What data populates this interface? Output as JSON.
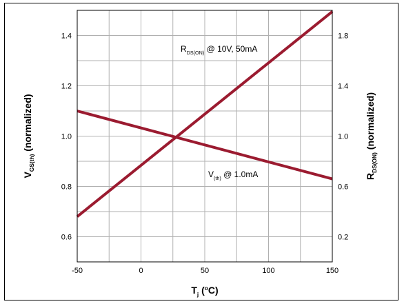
{
  "chart_data": {
    "type": "line",
    "x_axis": {
      "label_main": "T",
      "label_sub": "j",
      "label_rest": " (",
      "label_sup": "o",
      "label_end": "C)",
      "range": [
        -50,
        150
      ],
      "ticks": [
        -50,
        0,
        50,
        100,
        150
      ],
      "tick_labels": [
        "-50",
        "0",
        "50",
        "100",
        "150"
      ]
    },
    "y_left": {
      "label_main": "V",
      "label_sub": "GS(th)",
      "label_rest": " (normalized)",
      "range": [
        0.5,
        1.5
      ],
      "ticks": [
        0.6,
        0.8,
        1.0,
        1.2,
        1.4
      ],
      "tick_labels": [
        "0.6",
        "0.8",
        "1.0",
        "1.2",
        "1.4"
      ]
    },
    "y_right": {
      "label_main": "R",
      "label_sub": "DS(ON)",
      "label_rest": " (normalized)",
      "range": [
        0.0,
        2.0
      ],
      "ticks": [
        0.2,
        0.6,
        1.0,
        1.4,
        1.8
      ],
      "tick_labels": [
        "0.2",
        "0.6",
        "1.0",
        "1.4",
        "1.8"
      ]
    },
    "series": [
      {
        "name_main": "R",
        "name_sub": "DS(ON)",
        "name_rest": " @ 10V, 50mA",
        "axis": "right",
        "color": "#9b1b30",
        "x": [
          -50,
          150
        ],
        "y": [
          0.36,
          1.99
        ]
      },
      {
        "name_main": "V",
        "name_sub": "(th)",
        "name_rest": " @ 1.0mA",
        "axis": "left",
        "color": "#9b1b30",
        "x": [
          -50,
          150
        ],
        "y": [
          1.1,
          0.83
        ]
      }
    ],
    "grid": true
  }
}
